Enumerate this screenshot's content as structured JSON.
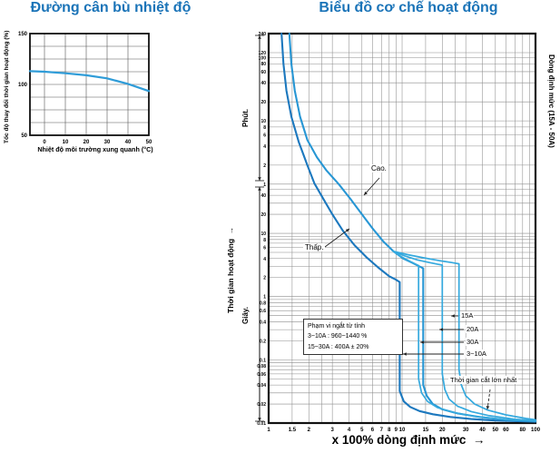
{
  "page": {
    "background": "#ffffff",
    "title_color": "#1b74b8"
  },
  "chart_data": [
    {
      "id": "temp-compensation",
      "type": "line",
      "title": "Đường cân bù nhiệt độ",
      "xlabel": "Nhiệt độ môi trường xung quanh (°C)",
      "ylabel": "Tốc độ thay đổi thời gian hoạt động (%)",
      "xlim": [
        -7,
        50
      ],
      "ylim": [
        50,
        150
      ],
      "x_ticks": [
        0,
        10,
        20,
        30,
        40,
        50
      ],
      "y_ticks": [
        150,
        100,
        50
      ],
      "y_grid_step": 12.5,
      "grid": true,
      "series": [
        {
          "name": "đường cân bù",
          "color": "#2f9cd8",
          "width": 2.2,
          "points": [
            [
              -7,
              113
            ],
            [
              0,
              112.5
            ],
            [
              10,
              111
            ],
            [
              20,
              109
            ],
            [
              30,
              106
            ],
            [
              40,
              100.5
            ],
            [
              50,
              93.5
            ]
          ]
        }
      ]
    },
    {
      "id": "trip-characteristic",
      "type": "line",
      "scale": "log-log",
      "title": "Biểu đồ cơ chế hoạt động",
      "xlabel": "x 100% dòng định mức",
      "xlabel_arrow": "→",
      "ylabel": "Thời gian hoạt động",
      "ylabel_arrow": "→",
      "ylabel_right": "Dòng định mức (15A - 50A)",
      "y_section_labels": {
        "minutes": "Phút.",
        "seconds": "Giây."
      },
      "xlim": [
        1,
        100
      ],
      "ylim_seconds": [
        0.01,
        14400
      ],
      "x_tick_labels": [
        1,
        1.5,
        2,
        3,
        4,
        5,
        6,
        7,
        8,
        9,
        10,
        15,
        20,
        30,
        40,
        50,
        60,
        80,
        100
      ],
      "x_grid_extra": [
        2.5,
        25,
        70,
        90
      ],
      "y_ticks_minutes": [
        240,
        120,
        100,
        80,
        60,
        40,
        20,
        10,
        8,
        6,
        4,
        2,
        1
      ],
      "y_ticks_seconds": [
        40,
        20,
        10,
        8,
        6,
        4,
        2,
        1,
        0.8,
        0.6,
        0.4,
        0.2,
        0.1,
        0.08,
        0.06,
        0.04,
        0.02,
        0.01
      ],
      "annotations": {
        "high_label": "Cao.",
        "low_label": "Thấp.",
        "trip_box": {
          "line1": "Phạm vi ngắt từ tính",
          "line2": "3~10A : 960~1440 %",
          "line3": "15~30A : 400A ± 20%"
        },
        "rating_labels": [
          "15A",
          "20A",
          "30A",
          "3~10A"
        ],
        "max_break_label": "Thời gian cắt lớn nhất"
      },
      "magnetic_trip_multiples": {
        "3~10A_min": 9.6,
        "30A": 13.3,
        "3~10A_max": 14.4,
        "20A": 20,
        "15A": 26.7
      },
      "series": [
        {
          "name": "Thấp (giới hạn dưới, 3~10A)",
          "color": "#1c78be",
          "width": 2.1,
          "points": [
            [
              1.25,
              14400
            ],
            [
              1.29,
              4800
            ],
            [
              1.36,
              1800
            ],
            [
              1.48,
              700
            ],
            [
              1.68,
              280
            ],
            [
              1.95,
              120
            ],
            [
              2.2,
              62
            ],
            [
              2.55,
              36
            ],
            [
              3.0,
              20
            ],
            [
              3.6,
              11
            ],
            [
              4.4,
              6.5
            ],
            [
              5.4,
              4.2
            ],
            [
              6.6,
              2.9
            ],
            [
              8.0,
              2.1
            ],
            [
              9.0,
              1.85
            ],
            [
              9.6,
              1.7
            ],
            [
              9.6,
              0.032
            ],
            [
              10.3,
              0.022
            ],
            [
              11.5,
              0.018
            ],
            [
              13.5,
              0.0155
            ],
            [
              17,
              0.0138
            ],
            [
              23,
              0.0125
            ],
            [
              33,
              0.0116
            ],
            [
              50,
              0.011
            ],
            [
              100,
              0.0105
            ]
          ]
        },
        {
          "name": "Cao (giới hạn trên, 3~10A)",
          "color": "#2796d4",
          "width": 2.1,
          "points": [
            [
              1.43,
              14400
            ],
            [
              1.48,
              4800
            ],
            [
              1.57,
              1800
            ],
            [
              1.72,
              700
            ],
            [
              1.95,
              300
            ],
            [
              2.3,
              160
            ],
            [
              2.7,
              100
            ],
            [
              3.35,
              60
            ],
            [
              4.1,
              35
            ],
            [
              5.0,
              20
            ],
            [
              6.0,
              12
            ],
            [
              7.2,
              7.5
            ],
            [
              8.6,
              5.2
            ],
            [
              10.2,
              4.0
            ],
            [
              12,
              3.4
            ],
            [
              13.5,
              3.0
            ],
            [
              14.4,
              2.8
            ],
            [
              14.4,
              0.04
            ],
            [
              15.3,
              0.027
            ],
            [
              17,
              0.02
            ],
            [
              20,
              0.0165
            ],
            [
              26,
              0.0142
            ],
            [
              38,
              0.0125
            ],
            [
              60,
              0.0113
            ],
            [
              100,
              0.0108
            ]
          ]
        },
        {
          "name": "30A",
          "color": "#35a9de",
          "width": 1.7,
          "points": [
            [
              8.6,
              5.2
            ],
            [
              10,
              4.2
            ],
            [
              11.5,
              3.6
            ],
            [
              12.7,
              3.25
            ],
            [
              13.3,
              3.1
            ],
            [
              13.3,
              0.05
            ],
            [
              14,
              0.03
            ],
            [
              15.5,
              0.022
            ],
            [
              18.5,
              0.0175
            ],
            [
              24,
              0.0148
            ],
            [
              35,
              0.0128
            ],
            [
              60,
              0.0113
            ],
            [
              100,
              0.0107
            ]
          ]
        },
        {
          "name": "20A",
          "color": "#35a9de",
          "width": 1.7,
          "points": [
            [
              8.6,
              5.2
            ],
            [
              10.5,
              4.4
            ],
            [
              13,
              3.8
            ],
            [
              16,
              3.45
            ],
            [
              18.5,
              3.25
            ],
            [
              20,
              3.15
            ],
            [
              20,
              0.06
            ],
            [
              20.9,
              0.034
            ],
            [
              22.5,
              0.024
            ],
            [
              26,
              0.0185
            ],
            [
              33,
              0.0152
            ],
            [
              45,
              0.0131
            ],
            [
              70,
              0.0115
            ],
            [
              100,
              0.0109
            ]
          ]
        },
        {
          "name": "15A",
          "color": "#35a9de",
          "width": 1.7,
          "points": [
            [
              8.6,
              5.2
            ],
            [
              11,
              4.6
            ],
            [
              14.5,
              4.1
            ],
            [
              19,
              3.7
            ],
            [
              23.5,
              3.45
            ],
            [
              26.7,
              3.3
            ],
            [
              26.7,
              0.07
            ],
            [
              27.8,
              0.04
            ],
            [
              30,
              0.027
            ],
            [
              35,
              0.02
            ],
            [
              44,
              0.016
            ],
            [
              60,
              0.0135
            ],
            [
              85,
              0.0118
            ],
            [
              100,
              0.0113
            ]
          ]
        }
      ]
    }
  ]
}
